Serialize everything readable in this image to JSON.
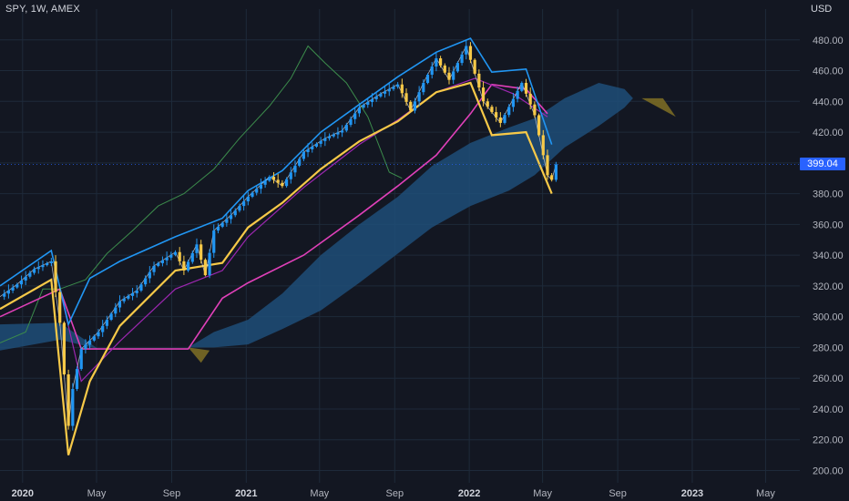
{
  "header": {
    "ticker": "SPY, 1W, AMEX",
    "currency": "USD"
  },
  "price_label": "399.04",
  "colors": {
    "background": "#131722",
    "grid": "#1e2a3a",
    "candle_up": "#2196f3",
    "candle_down": "#f7c948",
    "cloud_bull": "#1e4d78",
    "cloud_bear": "#7a6a25",
    "band_upper": "#2196f3",
    "band_lower": "#f7c948",
    "long_ma": "#e040b9",
    "mid_ma": "#9c27b0",
    "lagging": "#3c8c4c",
    "price_tag": "#2962ff"
  },
  "chart_data": {
    "type": "candlestick",
    "symbol": "SPY",
    "interval": "1W",
    "exchange": "AMEX",
    "ylim": [
      192,
      500
    ],
    "xlim": [
      "2019-11-25",
      "2023-06-26"
    ],
    "y_ticks": [
      "480.00",
      "460.00",
      "440.00",
      "420.00",
      "400.00",
      "380.00",
      "360.00",
      "340.00",
      "320.00",
      "300.00",
      "280.00",
      "260.00",
      "240.00",
      "220.00",
      "200.00"
    ],
    "y_tick_values": [
      480,
      460,
      440,
      420,
      400,
      380,
      360,
      340,
      320,
      300,
      280,
      260,
      240,
      220,
      200
    ],
    "x_ticks": [
      {
        "date": "2020-01-01",
        "label": "2020",
        "year": true
      },
      {
        "date": "2020-05-01",
        "label": "May",
        "year": false
      },
      {
        "date": "2020-09-01",
        "label": "Sep",
        "year": false
      },
      {
        "date": "2021-01-01",
        "label": "2021",
        "year": true
      },
      {
        "date": "2021-05-01",
        "label": "May",
        "year": false
      },
      {
        "date": "2021-09-01",
        "label": "Sep",
        "year": false
      },
      {
        "date": "2022-01-01",
        "label": "2022",
        "year": true
      },
      {
        "date": "2022-05-01",
        "label": "May",
        "year": false
      },
      {
        "date": "2022-09-01",
        "label": "Sep",
        "year": false
      },
      {
        "date": "2023-01-01",
        "label": "2023",
        "year": true
      },
      {
        "date": "2023-05-01",
        "label": "May",
        "year": false
      }
    ],
    "last_price": 399.04,
    "price_path": [
      [
        "2019-11-25",
        313
      ],
      [
        "2019-12-23",
        321
      ],
      [
        "2020-01-20",
        331
      ],
      [
        "2020-02-17",
        336
      ],
      [
        "2020-03-02",
        296
      ],
      [
        "2020-03-16",
        229
      ],
      [
        "2020-03-23",
        253
      ],
      [
        "2020-04-06",
        279
      ],
      [
        "2020-05-04",
        290
      ],
      [
        "2020-06-08",
        310
      ],
      [
        "2020-07-06",
        317
      ],
      [
        "2020-08-03",
        333
      ],
      [
        "2020-09-07",
        342
      ],
      [
        "2020-09-21",
        330
      ],
      [
        "2020-10-12",
        347
      ],
      [
        "2020-10-26",
        327
      ],
      [
        "2020-11-09",
        356
      ],
      [
        "2020-12-07",
        366
      ],
      [
        "2021-01-04",
        378
      ],
      [
        "2021-02-08",
        391
      ],
      [
        "2021-03-01",
        385
      ],
      [
        "2021-04-05",
        407
      ],
      [
        "2021-05-10",
        416
      ],
      [
        "2021-06-07",
        421
      ],
      [
        "2021-07-05",
        436
      ],
      [
        "2021-08-09",
        445
      ],
      [
        "2021-09-06",
        451
      ],
      [
        "2021-09-27",
        434
      ],
      [
        "2021-10-18",
        452
      ],
      [
        "2021-11-08",
        468
      ],
      [
        "2021-11-29",
        454
      ],
      [
        "2021-12-27",
        476
      ],
      [
        "2022-01-24",
        440
      ],
      [
        "2022-02-21",
        426
      ],
      [
        "2022-03-28",
        452
      ],
      [
        "2022-04-18",
        431
      ],
      [
        "2022-05-09",
        392
      ],
      [
        "2022-05-16",
        389
      ],
      [
        "2022-05-23",
        399
      ]
    ],
    "cloud": {
      "bull_upper": [
        [
          "2019-11-25",
          295
        ],
        [
          "2020-03-02",
          296
        ],
        [
          "2020-05-04",
          279
        ],
        [
          "2020-09-28",
          280
        ],
        [
          "2020-11-09",
          290
        ],
        [
          "2021-01-04",
          298
        ],
        [
          "2021-03-01",
          315
        ],
        [
          "2021-05-03",
          340
        ],
        [
          "2021-07-05",
          360
        ],
        [
          "2021-09-06",
          378
        ],
        [
          "2021-11-01",
          398
        ],
        [
          "2022-01-03",
          413
        ],
        [
          "2022-03-07",
          423
        ],
        [
          "2022-04-18",
          429
        ],
        [
          "2022-06-06",
          442
        ],
        [
          "2022-08-01",
          452
        ],
        [
          "2022-09-12",
          448
        ],
        [
          "2022-09-26",
          442
        ]
      ],
      "bull_lower": [
        [
          "2019-11-25",
          278
        ],
        [
          "2020-03-02",
          285
        ],
        [
          "2020-05-04",
          279
        ],
        [
          "2020-09-28",
          280
        ],
        [
          "2020-11-09",
          280
        ],
        [
          "2021-01-04",
          282
        ],
        [
          "2021-03-01",
          292
        ],
        [
          "2021-05-03",
          304
        ],
        [
          "2021-07-05",
          322
        ],
        [
          "2021-09-06",
          341
        ],
        [
          "2021-11-01",
          358
        ],
        [
          "2022-01-03",
          372
        ],
        [
          "2022-03-07",
          382
        ],
        [
          "2022-04-18",
          392
        ],
        [
          "2022-06-06",
          410
        ],
        [
          "2022-08-01",
          424
        ],
        [
          "2022-09-12",
          436
        ],
        [
          "2022-09-26",
          442
        ]
      ],
      "bear": [
        [
          "2020-09-28",
          280
        ],
        [
          "2020-10-19",
          270
        ],
        [
          "2020-11-02",
          278
        ],
        [
          "2022-10-10",
          442
        ],
        [
          "2022-11-14",
          442
        ],
        [
          "2022-12-05",
          430
        ]
      ]
    },
    "upper_band": [
      [
        "2019-11-25",
        320
      ],
      [
        "2020-02-17",
        343
      ],
      [
        "2020-03-16",
        295
      ],
      [
        "2020-04-20",
        325
      ],
      [
        "2020-06-08",
        336
      ],
      [
        "2020-09-07",
        352
      ],
      [
        "2020-11-23",
        364
      ],
      [
        "2021-01-04",
        382
      ],
      [
        "2021-03-01",
        395
      ],
      [
        "2021-05-03",
        420
      ],
      [
        "2021-07-05",
        438
      ],
      [
        "2021-09-06",
        456
      ],
      [
        "2021-11-08",
        472
      ],
      [
        "2022-01-03",
        481
      ],
      [
        "2022-02-07",
        459
      ],
      [
        "2022-04-04",
        461
      ],
      [
        "2022-05-16",
        412
      ]
    ],
    "lower_band": [
      [
        "2019-11-25",
        305
      ],
      [
        "2020-02-17",
        324
      ],
      [
        "2020-03-16",
        210
      ],
      [
        "2020-04-20",
        258
      ],
      [
        "2020-06-08",
        294
      ],
      [
        "2020-09-07",
        330
      ],
      [
        "2020-11-23",
        335
      ],
      [
        "2021-01-04",
        358
      ],
      [
        "2021-03-01",
        374
      ],
      [
        "2021-05-03",
        396
      ],
      [
        "2021-07-05",
        414
      ],
      [
        "2021-09-06",
        427
      ],
      [
        "2021-11-08",
        446
      ],
      [
        "2022-01-03",
        452
      ],
      [
        "2022-02-07",
        418
      ],
      [
        "2022-04-04",
        420
      ],
      [
        "2022-05-16",
        380
      ]
    ],
    "mid_line": [
      [
        "2020-03-02",
        318
      ],
      [
        "2020-04-06",
        258
      ],
      [
        "2020-06-08",
        284
      ],
      [
        "2020-09-07",
        318
      ],
      [
        "2020-11-23",
        330
      ],
      [
        "2021-01-04",
        352
      ],
      [
        "2021-04-05",
        384
      ],
      [
        "2021-07-05",
        412
      ],
      [
        "2021-09-06",
        428
      ],
      [
        "2021-11-08",
        446
      ],
      [
        "2022-01-10",
        455
      ],
      [
        "2022-03-14",
        445
      ],
      [
        "2022-05-09",
        430
      ]
    ],
    "long_ma": [
      [
        "2019-11-25",
        300
      ],
      [
        "2020-03-02",
        318
      ],
      [
        "2020-04-06",
        279
      ],
      [
        "2020-09-28",
        279
      ],
      [
        "2020-11-23",
        312
      ],
      [
        "2021-01-04",
        322
      ],
      [
        "2021-04-05",
        340
      ],
      [
        "2021-07-05",
        366
      ],
      [
        "2021-09-06",
        385
      ],
      [
        "2021-11-08",
        405
      ],
      [
        "2022-01-03",
        432
      ],
      [
        "2022-02-07",
        451
      ],
      [
        "2022-04-04",
        448
      ],
      [
        "2022-05-09",
        432
      ]
    ],
    "lagging_line": [
      [
        "2019-11-25",
        283
      ],
      [
        "2020-01-06",
        290
      ],
      [
        "2020-02-03",
        318
      ],
      [
        "2020-03-02",
        318
      ],
      [
        "2020-04-13",
        324
      ],
      [
        "2020-05-18",
        341
      ],
      [
        "2020-06-29",
        356
      ],
      [
        "2020-08-10",
        372
      ],
      [
        "2020-09-21",
        380
      ],
      [
        "2020-11-09",
        396
      ],
      [
        "2020-12-21",
        416
      ],
      [
        "2021-02-08",
        437
      ],
      [
        "2021-03-15",
        455
      ],
      [
        "2021-04-12",
        476
      ],
      [
        "2021-05-10",
        465
      ],
      [
        "2021-06-14",
        452
      ],
      [
        "2021-07-19",
        430
      ],
      [
        "2021-08-23",
        394
      ],
      [
        "2021-09-13",
        390
      ]
    ]
  }
}
